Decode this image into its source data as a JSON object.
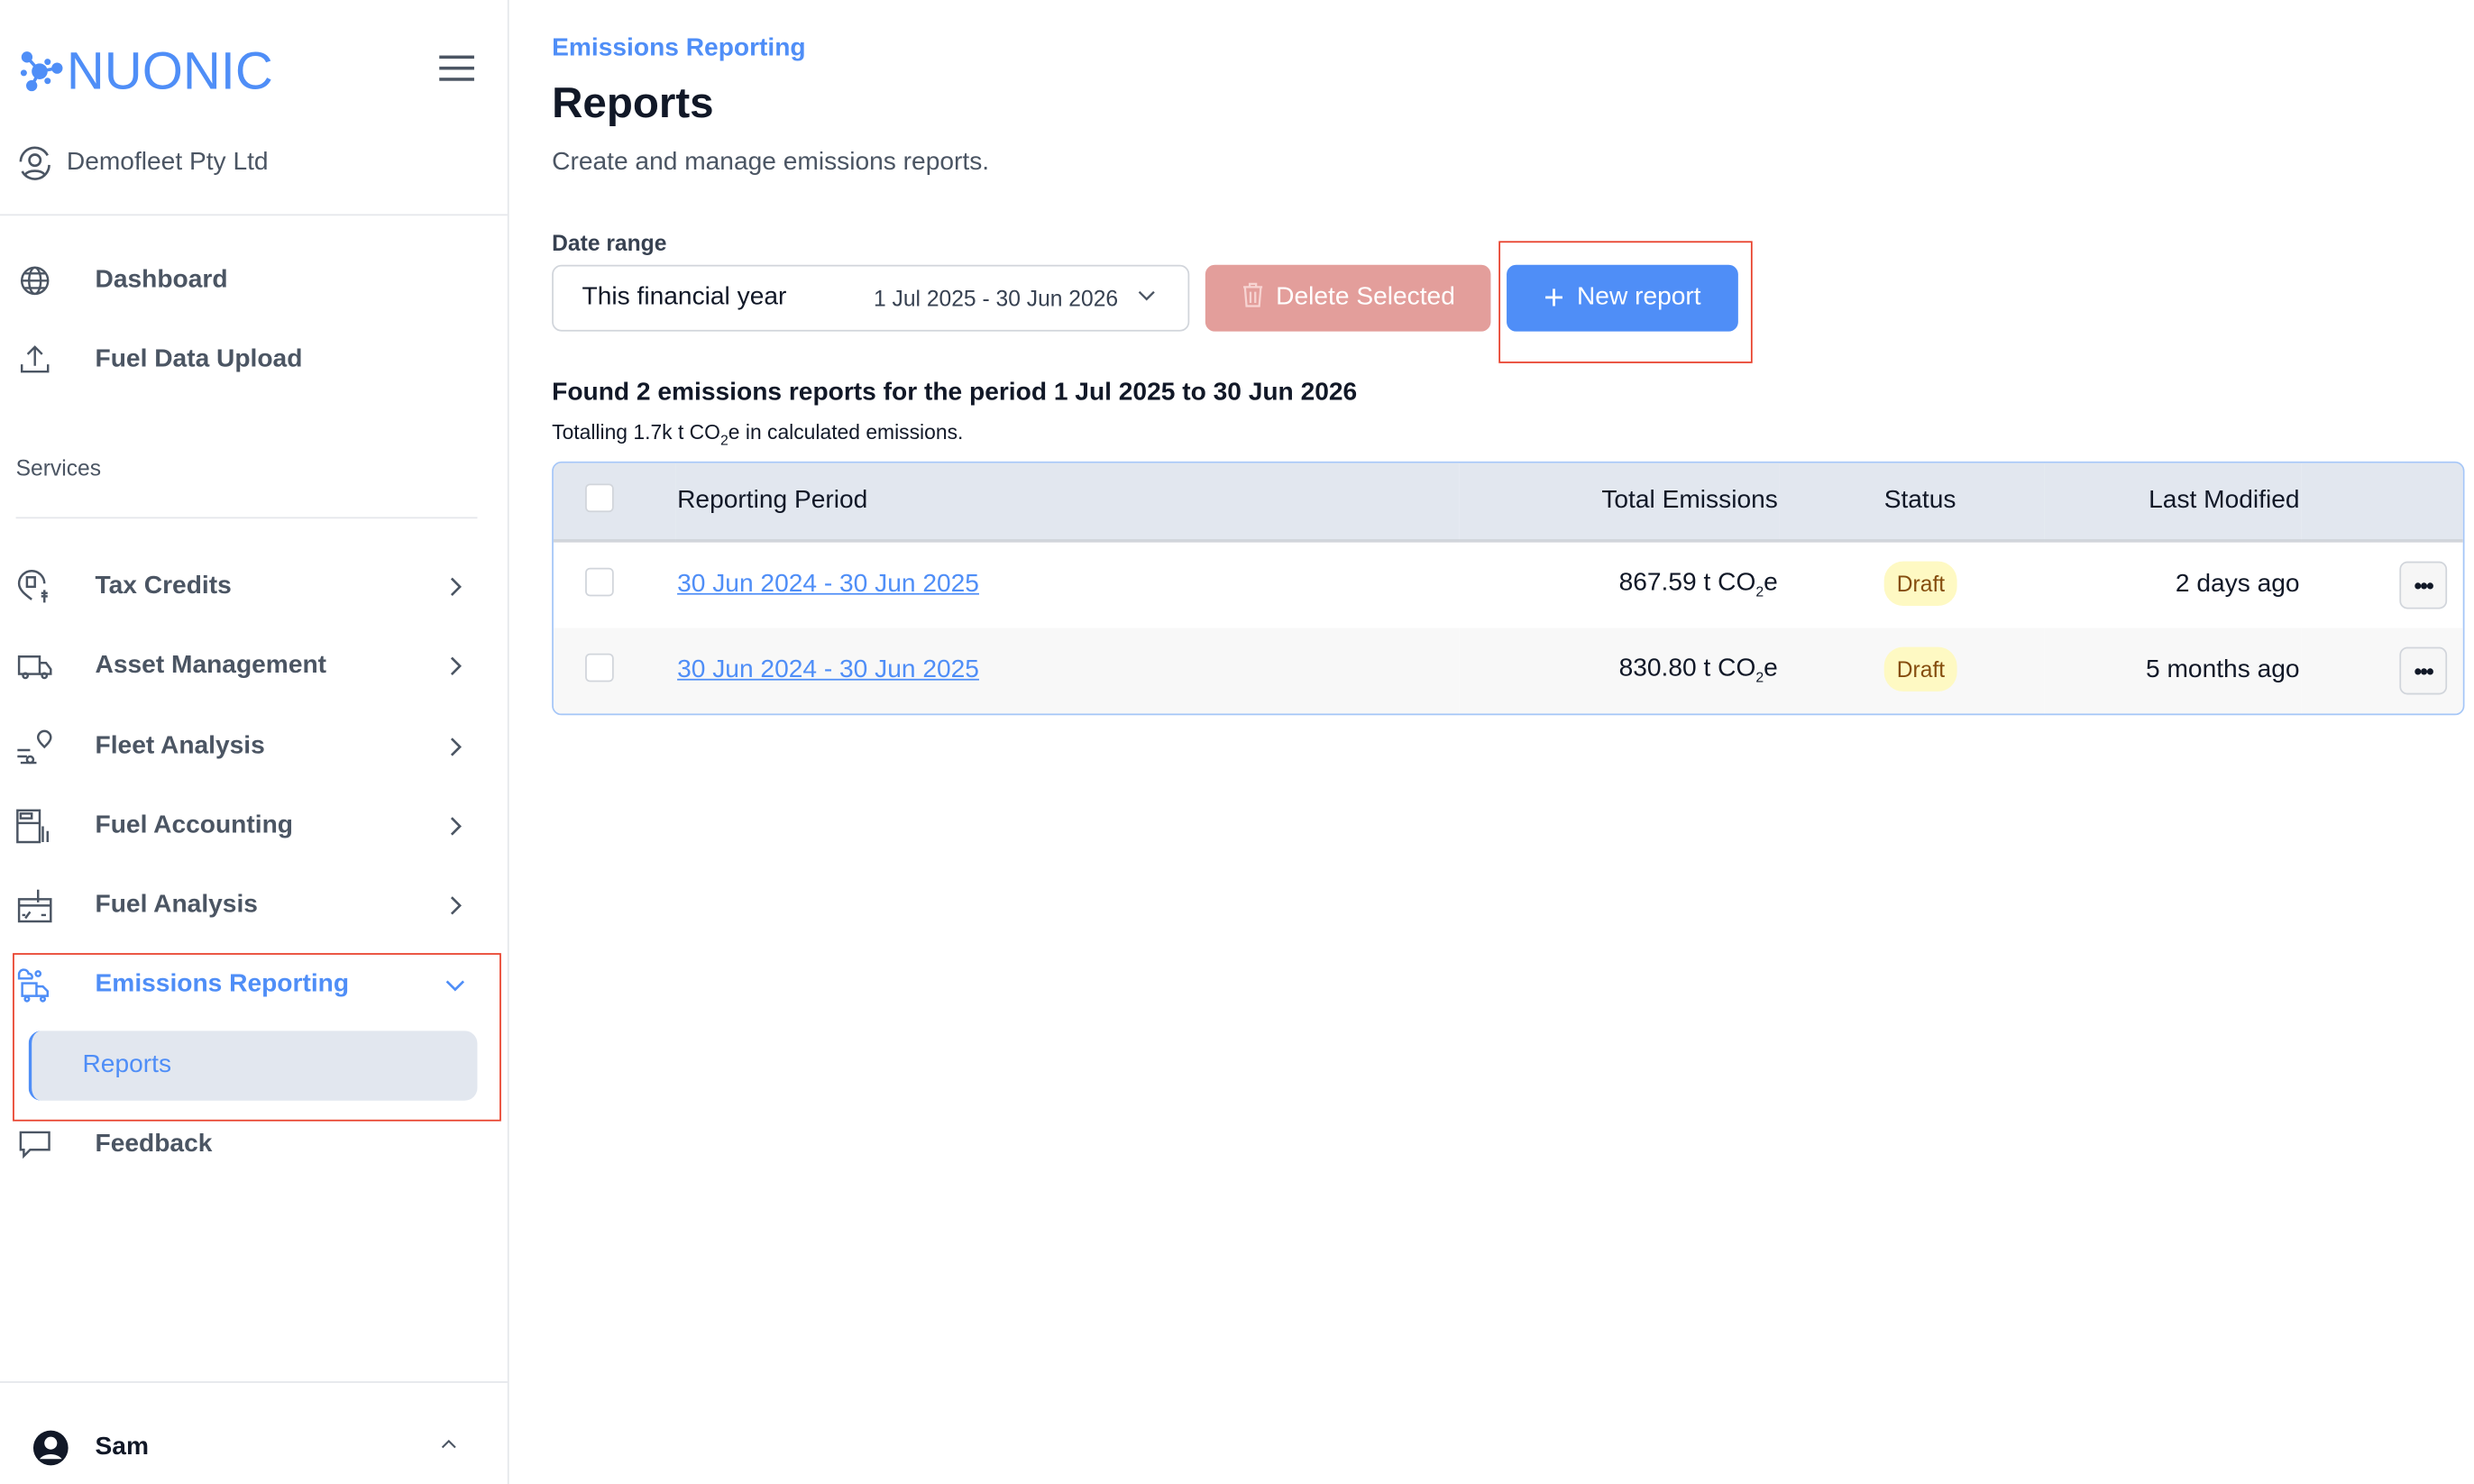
{
  "brand": {
    "name": "NUONIC",
    "color": "#4f8ef7"
  },
  "sidebar": {
    "org": "Demofleet Pty Ltd",
    "top_items": [
      {
        "label": "Dashboard",
        "icon": "globe-icon"
      },
      {
        "label": "Fuel Data Upload",
        "icon": "upload-icon"
      }
    ],
    "section_label": "Services",
    "items": [
      {
        "label": "Tax Credits",
        "icon": "fuel-pin-dollar-icon"
      },
      {
        "label": "Asset Management",
        "icon": "truck-icon"
      },
      {
        "label": "Fleet Analysis",
        "icon": "car-pin-icon"
      },
      {
        "label": "Fuel Accounting",
        "icon": "fuel-pump-icon"
      },
      {
        "label": "Fuel Analysis",
        "icon": "gauge-dollar-icon"
      },
      {
        "label": "Emissions Reporting",
        "icon": "truck-emissions-icon",
        "expanded": true,
        "active": true
      }
    ],
    "sub_item": "Reports",
    "feedback": "Feedback",
    "user": "Sam"
  },
  "main": {
    "breadcrumb": "Emissions Reporting",
    "title": "Reports",
    "subtitle": "Create and manage emissions reports.",
    "date_range_label": "Date range",
    "date_range_value": "This financial year",
    "date_range_dates": "1 Jul 2025 - 30 Jun 2026",
    "delete_label": "Delete Selected",
    "new_label": "New report",
    "summary": "Found 2 emissions reports for the period 1 Jul 2025 to 30 Jun 2026",
    "totalling_prefix": "Totalling 1.7k t CO",
    "totalling_suffix": "e in calculated emissions."
  },
  "table": {
    "headers": [
      "Reporting Period",
      "Total Emissions",
      "Status",
      "Last Modified"
    ],
    "rows": [
      {
        "period": "30 Jun 2024 - 30 Jun 2025",
        "emissions": "867.59 t CO",
        "status": "Draft",
        "modified": "2 days ago"
      },
      {
        "period": "30 Jun 2024 - 30 Jun 2025",
        "emissions": "830.80 t CO",
        "status": "Draft",
        "modified": "5 months ago"
      }
    ],
    "unit_sub": "2",
    "unit_suffix": "e"
  },
  "colors": {
    "accent": "#4f8ef7",
    "danger_disabled": "#e39e9b",
    "draft_bg": "#fef9c3",
    "highlight": "#e8412c"
  }
}
